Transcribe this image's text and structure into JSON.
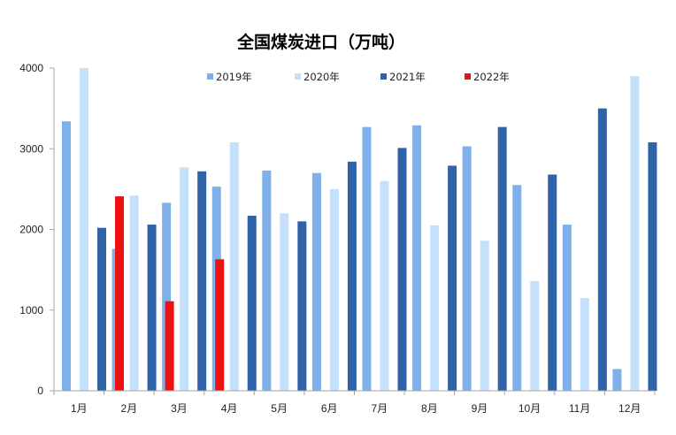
{
  "chart_data": {
    "type": "bar",
    "title": "全国煤炭进口（万吨）",
    "xlabel": "",
    "ylabel": "",
    "ylim": [
      0,
      4000
    ],
    "yticks": [
      "0",
      "1000",
      "2000",
      "3000",
      "4000"
    ],
    "grid": false,
    "legend_position": "top",
    "categories": [
      "1月",
      "2月",
      "3月",
      "4月",
      "5月",
      "6月",
      "7月",
      "8月",
      "9月",
      "10月",
      "11月",
      "12月"
    ],
    "series": [
      {
        "name": "2019年",
        "color": "#7fb0ea",
        "values": [
          3340,
          1760,
          2330,
          2530,
          2730,
          2700,
          3270,
          3290,
          3030,
          2550,
          2060,
          270
        ]
      },
      {
        "name": "2020年",
        "color": "#c5e0fb",
        "values": [
          4000,
          2420,
          2770,
          3080,
          2200,
          2500,
          2600,
          2050,
          1860,
          1360,
          1150,
          3900
        ]
      },
      {
        "name": "2021年",
        "color": "#2f63a8",
        "values": [
          2020,
          2060,
          2720,
          2170,
          2100,
          2840,
          3010,
          2790,
          3270,
          2680,
          3500,
          3080
        ]
      },
      {
        "name": "2022年",
        "color": "#ee1111",
        "values": [
          2410,
          1110,
          1630,
          null,
          null,
          null,
          null,
          null,
          null,
          null,
          null,
          null
        ]
      }
    ]
  }
}
